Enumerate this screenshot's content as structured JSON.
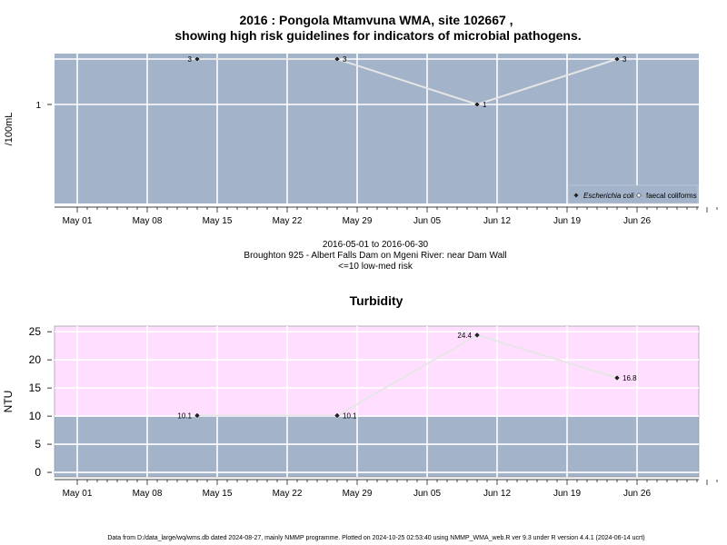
{
  "colors": {
    "panel": "#a3b3c9",
    "risk_band": "#ffdeff",
    "grid": "#ffffff",
    "line": "#e6e6e6",
    "point": "#222222"
  },
  "title": {
    "line1": "2016 : Pongola Mtamvuna WMA, site 102667 ,",
    "line2": "showing high risk guidelines for indicators of microbial pathogens."
  },
  "subtitle": {
    "dates": "2016-05-01 to 2016-06-30",
    "site": "Broughton 925 - Albert Falls Dam on Mgeni River: near Dam Wall",
    "risk": "<=10 low-med risk"
  },
  "footer": "Data from D:/data_large/wq/wms.db dated 2024-08-27, mainly NMMP programme. Plotted on 2024-10-25 02:53:40 using NMMP_WMA_web.R ver 9.3 under R version 4.4.1 (2024-06-14 ucrt)",
  "chart_data": [
    {
      "type": "line",
      "title": "",
      "xlabel": "",
      "ylabel": "/100mL",
      "x_ticks": [
        "May 01",
        "May 08",
        "May 15",
        "May 22",
        "May 29",
        "Jun 05",
        "Jun 12",
        "Jun 19",
        "Jun 26"
      ],
      "y_ticks": [
        "1"
      ],
      "y_scale": "log",
      "legend": {
        "position": "bottom-right",
        "entries": [
          "Escherichia coli",
          "faecal coliforms"
        ]
      },
      "series": [
        {
          "name": "Escherichia coli",
          "x": [
            "2016-05-13",
            "2016-05-27",
            "2016-06-10",
            "2016-06-24"
          ],
          "y": [
            3,
            3,
            1,
            3
          ],
          "labels": [
            "3",
            "3",
            "1",
            "3"
          ]
        }
      ]
    },
    {
      "type": "line",
      "title": "Turbidity",
      "xlabel": "",
      "ylabel": "NTU",
      "x_ticks": [
        "May 01",
        "May 08",
        "May 15",
        "May 22",
        "May 29",
        "Jun 05",
        "Jun 12",
        "Jun 19",
        "Jun 26"
      ],
      "y_ticks": [
        "0",
        "5",
        "10",
        "15",
        "20",
        "25"
      ],
      "ylim": [
        -0.8,
        26
      ],
      "risk_threshold": 10,
      "series": [
        {
          "x": [
            "2016-05-13",
            "2016-05-27",
            "2016-06-10",
            "2016-06-24"
          ],
          "y": [
            10.1,
            10.1,
            24.4,
            16.8
          ],
          "labels": [
            "10.1",
            "10.1",
            "24.4",
            "16.8"
          ]
        }
      ]
    }
  ]
}
